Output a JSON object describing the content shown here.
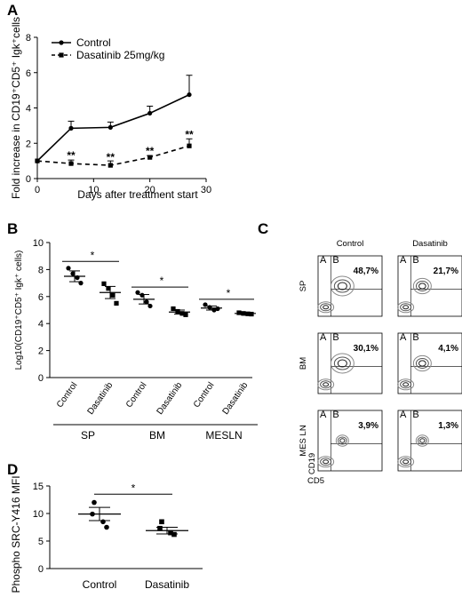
{
  "panels": {
    "A": "A",
    "B": "B",
    "C": "C",
    "D": "D"
  },
  "chart_data": [
    {
      "id": "A",
      "type": "line",
      "xlabel": "Days after treatment start",
      "ylabel": "Fold increase in CD19⁺CD5⁺ Igk⁺cells",
      "xlim": [
        0,
        30
      ],
      "ylim": [
        0,
        8
      ],
      "xticks": [
        "0",
        "10",
        "20",
        "30"
      ],
      "yticks": [
        "0",
        "2",
        "4",
        "6",
        "8"
      ],
      "legend_position": "top-left",
      "series": [
        {
          "name": "Control",
          "style": "solid",
          "marker": "circle",
          "x": [
            0,
            6,
            13,
            20,
            27
          ],
          "y": [
            1.0,
            2.85,
            2.9,
            3.7,
            4.75
          ],
          "err": [
            0,
            0.4,
            0.3,
            0.4,
            1.1
          ]
        },
        {
          "name": "Dasatinib 25mg/kg",
          "style": "dashed",
          "marker": "square",
          "x": [
            0,
            6,
            13,
            20,
            27
          ],
          "y": [
            1.0,
            0.85,
            0.75,
            1.2,
            1.85
          ],
          "err": [
            0,
            0.2,
            0.25,
            0.1,
            0.4
          ]
        }
      ],
      "annotations": [
        {
          "x": 6,
          "y": 1.3,
          "text": "**"
        },
        {
          "x": 13,
          "y": 1.2,
          "text": "**"
        },
        {
          "x": 20,
          "y": 1.55,
          "text": "**"
        },
        {
          "x": 27,
          "y": 2.5,
          "text": "**"
        }
      ]
    },
    {
      "id": "B",
      "type": "scatter",
      "ylabel": "Log10(CD19⁺CD5⁺ Igk⁺ cells)",
      "ylim": [
        0,
        10
      ],
      "yticks": [
        "0",
        "2",
        "4",
        "6",
        "8",
        "10"
      ],
      "groups": [
        {
          "label": "SP",
          "categories": [
            {
              "name": "Control",
              "marker": "circle",
              "mean": 7.5,
              "sem": 0.4,
              "points": [
                8.1,
                7.7,
                7.4,
                7.0
              ]
            },
            {
              "name": "Dasatinib",
              "marker": "square",
              "mean": 6.3,
              "sem": 0.45,
              "points": [
                6.95,
                6.6,
                6.1,
                5.5
              ]
            }
          ],
          "sig": "*",
          "sig_y": 8.6
        },
        {
          "label": "BM",
          "categories": [
            {
              "name": "Control",
              "marker": "circle",
              "mean": 5.8,
              "sem": 0.35,
              "points": [
                6.3,
                6.1,
                5.6,
                5.3
              ]
            },
            {
              "name": "Dasatinib",
              "marker": "square",
              "mean": 4.85,
              "sem": 0.15,
              "points": [
                5.1,
                4.9,
                4.75,
                4.65
              ]
            }
          ],
          "sig": "*",
          "sig_y": 6.7
        },
        {
          "label": "MESLN",
          "categories": [
            {
              "name": "Control",
              "marker": "circle",
              "mean": 5.15,
              "sem": 0.15,
              "points": [
                5.4,
                5.2,
                5.0,
                5.1
              ]
            },
            {
              "name": "Dasatinib",
              "marker": "square",
              "mean": 4.75,
              "sem": 0.05,
              "points": [
                4.8,
                4.75,
                4.72,
                4.7
              ]
            }
          ],
          "sig": "*",
          "sig_y": 5.8
        }
      ]
    },
    {
      "id": "D",
      "type": "scatter",
      "ylabel": "Phospho SRC-Y416 MFI",
      "ylim": [
        0,
        15
      ],
      "yticks": [
        "0",
        "5",
        "10",
        "15"
      ],
      "categories": [
        {
          "name": "Control",
          "marker": "circle",
          "mean": 9.9,
          "sem": 1.2,
          "points": [
            12.0,
            9.9,
            8.5,
            7.5
          ]
        },
        {
          "name": "Dasatinib",
          "marker": "square",
          "mean": 6.9,
          "sem": 0.6,
          "points": [
            8.5,
            7.3,
            6.5,
            6.2
          ]
        }
      ],
      "sig": "*",
      "sig_y": 13.5
    }
  ],
  "flow": {
    "columns": [
      "Control",
      "Dasatinib"
    ],
    "rows": [
      {
        "label": "SP",
        "values": [
          "48,7%",
          "21,7%"
        ]
      },
      {
        "label": "BM",
        "values": [
          "30,1%",
          "4,1%"
        ]
      },
      {
        "label": "MES LN",
        "values": [
          "3,9%",
          "1,3%"
        ]
      }
    ],
    "quadrant_a": "A",
    "quadrant_b": "B",
    "x_axis": "CD5",
    "y_axis": "CD19"
  }
}
